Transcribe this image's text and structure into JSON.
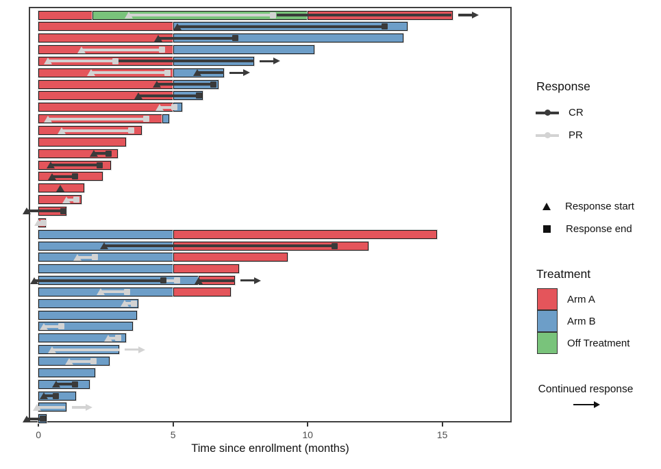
{
  "axis": {
    "xlabel": "Time since enrollment (months)"
  },
  "legend": {
    "response_title": "Response",
    "cr_label": "CR",
    "pr_label": "PR",
    "start_label": "Response start",
    "end_label": "Response end",
    "treatment_title": "Treatment",
    "treatments": [
      "Arm A",
      "Arm B",
      "Off Treatment"
    ],
    "continued_label": "Continued response"
  },
  "chart_data": {
    "type": "bar",
    "subtype": "swimmer-plot",
    "xlabel": "Time since enrollment (months)",
    "x_ticks": [
      0,
      5,
      10,
      15
    ],
    "xlim": [
      -0.31,
      17.63
    ],
    "grid": false,
    "legend_position": "right",
    "colors": {
      "Arm A": "#E4555B",
      "Arm B": "#6D9EC8",
      "Off Treatment": "#79C37B",
      "CR": "#3A3A3A",
      "PR": "#D3D3D3"
    },
    "treatment_codes": {
      "A": "Arm A",
      "B": "Arm B",
      "O": "Off Treatment"
    },
    "rows": [
      {
        "t": [
          [
            "A",
            0,
            2.0
          ],
          [
            "O",
            2.0,
            10.0
          ],
          [
            "A",
            10.0,
            15.4
          ]
        ],
        "r": [
          {
            "type": "PR",
            "start": 3.35,
            "end": 8.7,
            "tri": true,
            "sq": true
          },
          {
            "type": "CR",
            "start": 8.85,
            "end": 15.35,
            "tri": false,
            "sq": false
          }
        ],
        "arrow": "CR"
      },
      {
        "t": [
          [
            "A",
            0,
            5
          ],
          [
            "B",
            5,
            13.7
          ]
        ],
        "r": [
          {
            "type": "CR",
            "start": 5.15,
            "end": 12.85,
            "tri": true,
            "sq": true
          }
        ]
      },
      {
        "t": [
          [
            "A",
            0,
            5
          ],
          [
            "B",
            5,
            13.55
          ]
        ],
        "r": [
          {
            "type": "CR",
            "start": 4.45,
            "end": 7.3,
            "tri": true,
            "sq": true
          }
        ]
      },
      {
        "t": [
          [
            "A",
            0,
            5
          ],
          [
            "B",
            5,
            10.25
          ]
        ],
        "r": [
          {
            "type": "PR",
            "start": 1.6,
            "end": 4.6,
            "tri": true,
            "sq": true
          }
        ]
      },
      {
        "t": [
          [
            "A",
            0,
            5
          ],
          [
            "B",
            5,
            8.0
          ]
        ],
        "r": [
          {
            "type": "PR",
            "start": 0.35,
            "end": 2.85,
            "tri": true,
            "sq": true
          },
          {
            "type": "CR",
            "start": 2.9,
            "end": 8.0,
            "tri": false,
            "sq": false
          }
        ],
        "arrow": "CR"
      },
      {
        "t": [
          [
            "A",
            0,
            5
          ],
          [
            "B",
            5,
            6.9
          ]
        ],
        "r": [
          {
            "type": "PR",
            "start": 1.95,
            "end": 4.8,
            "tri": true,
            "sq": true
          },
          {
            "type": "CR",
            "start": 5.9,
            "end": 6.9,
            "tri": true,
            "sq": false
          }
        ],
        "arrow": "CR"
      },
      {
        "t": [
          [
            "A",
            0,
            5
          ],
          [
            "B",
            5,
            6.7
          ]
        ],
        "r": [
          {
            "type": "CR",
            "start": 4.4,
            "end": 6.5,
            "tri": true,
            "sq": true
          }
        ]
      },
      {
        "t": [
          [
            "A",
            0,
            5
          ],
          [
            "B",
            5,
            6.1
          ]
        ],
        "r": [
          {
            "type": "CR",
            "start": 3.7,
            "end": 5.95,
            "tri": true,
            "sq": true
          }
        ]
      },
      {
        "t": [
          [
            "A",
            0,
            5
          ],
          [
            "B",
            5,
            5.35
          ]
        ],
        "r": [
          {
            "type": "PR",
            "start": 4.5,
            "end": 5.05,
            "tri": true,
            "sq": true
          }
        ]
      },
      {
        "t": [
          [
            "A",
            0,
            4.6
          ],
          [
            "B",
            4.6,
            4.85
          ]
        ],
        "r": [
          {
            "type": "PR",
            "start": 0.36,
            "end": 4.0,
            "tri": true,
            "sq": true
          }
        ]
      },
      {
        "t": [
          [
            "A",
            0,
            3.85
          ]
        ],
        "r": [
          {
            "type": "PR",
            "start": 0.85,
            "end": 3.45,
            "tri": true,
            "sq": true
          }
        ]
      },
      {
        "t": [
          [
            "A",
            0,
            3.25
          ]
        ],
        "r": []
      },
      {
        "t": [
          [
            "A",
            0,
            2.95
          ]
        ],
        "r": [
          {
            "type": "CR",
            "start": 2.05,
            "end": 2.6,
            "tri": true,
            "sq": true
          }
        ]
      },
      {
        "t": [
          [
            "A",
            0,
            2.7
          ]
        ],
        "r": [
          {
            "type": "CR",
            "start": 0.45,
            "end": 2.27,
            "tri": true,
            "sq": true
          }
        ]
      },
      {
        "t": [
          [
            "A",
            0,
            2.4
          ]
        ],
        "r": [
          {
            "type": "CR",
            "start": 0.5,
            "end": 1.35,
            "tri": true,
            "sq": true
          }
        ]
      },
      {
        "t": [
          [
            "A",
            0,
            1.7
          ]
        ],
        "r": [
          {
            "type": "CR",
            "start": 0.8,
            "end": 0.8,
            "tri": true,
            "sq": false
          }
        ]
      },
      {
        "t": [
          [
            "A",
            0,
            1.6
          ]
        ],
        "r": [
          {
            "type": "PR",
            "start": 1.05,
            "end": 1.4,
            "tri": true,
            "sq": true
          }
        ]
      },
      {
        "t": [
          [
            "A",
            0,
            1.05
          ]
        ],
        "r": [
          {
            "type": "CR",
            "start": -0.45,
            "end": 0.92,
            "tri": true,
            "sq": true
          }
        ]
      },
      {
        "t": [
          [
            "A",
            0,
            0.28
          ]
        ],
        "r": [
          {
            "type": "PR",
            "start": 0.0,
            "end": 0.18,
            "tri": true,
            "sq": true
          }
        ]
      },
      {
        "t": [
          [
            "B",
            0,
            5
          ],
          [
            "A",
            5,
            14.8
          ]
        ],
        "r": []
      },
      {
        "t": [
          [
            "B",
            0,
            5
          ],
          [
            "A",
            5,
            12.25
          ]
        ],
        "r": [
          {
            "type": "CR",
            "start": 2.45,
            "end": 11.0,
            "tri": true,
            "sq": true
          }
        ]
      },
      {
        "t": [
          [
            "B",
            0,
            5
          ],
          [
            "A",
            5,
            9.25
          ]
        ],
        "r": [
          {
            "type": "PR",
            "start": 1.45,
            "end": 2.1,
            "tri": true,
            "sq": true
          }
        ]
      },
      {
        "t": [
          [
            "B",
            0,
            5
          ],
          [
            "A",
            5,
            7.45
          ]
        ],
        "r": []
      },
      {
        "t": [
          [
            "B",
            0,
            5.95
          ],
          [
            "A",
            5.95,
            7.3
          ]
        ],
        "r": [
          {
            "type": "CR",
            "start": -0.15,
            "end": 4.65,
            "tri": true,
            "sq": true
          },
          {
            "type": "PR",
            "start": 4.7,
            "end": 5.15,
            "tri": false,
            "sq": true
          },
          {
            "type": "CR",
            "start": 5.95,
            "end": 7.3,
            "tri": true,
            "sq": false
          }
        ],
        "arrow": "CR"
      },
      {
        "t": [
          [
            "B",
            0,
            5
          ],
          [
            "A",
            5,
            7.15
          ]
        ],
        "r": [
          {
            "type": "PR",
            "start": 2.3,
            "end": 3.3,
            "tri": true,
            "sq": true
          }
        ]
      },
      {
        "t": [
          [
            "B",
            0,
            3.7
          ]
        ],
        "r": [
          {
            "type": "PR",
            "start": 3.2,
            "end": 3.55,
            "tri": true,
            "sq": true
          }
        ]
      },
      {
        "t": [
          [
            "B",
            0,
            3.65
          ]
        ],
        "r": []
      },
      {
        "t": [
          [
            "B",
            0,
            3.5
          ]
        ],
        "r": [
          {
            "type": "PR",
            "start": 0.2,
            "end": 0.85,
            "tri": true,
            "sq": true
          }
        ]
      },
      {
        "t": [
          [
            "B",
            0,
            3.25
          ]
        ],
        "r": [
          {
            "type": "PR",
            "start": 2.6,
            "end": 2.95,
            "tri": true,
            "sq": true
          }
        ]
      },
      {
        "t": [
          [
            "B",
            0,
            3.0
          ]
        ],
        "r": [
          {
            "type": "PR",
            "start": 0.5,
            "end": 3.0,
            "tri": true,
            "sq": false
          }
        ],
        "arrow": "PR"
      },
      {
        "t": [
          [
            "B",
            0,
            2.65
          ]
        ],
        "r": [
          {
            "type": "PR",
            "start": 1.15,
            "end": 2.05,
            "tri": true,
            "sq": true
          }
        ]
      },
      {
        "t": [
          [
            "B",
            0,
            2.1
          ]
        ],
        "r": []
      },
      {
        "t": [
          [
            "B",
            0,
            1.9
          ]
        ],
        "r": [
          {
            "type": "CR",
            "start": 0.65,
            "end": 1.35,
            "tri": true,
            "sq": true
          }
        ]
      },
      {
        "t": [
          [
            "B",
            0,
            1.4
          ]
        ],
        "r": [
          {
            "type": "CR",
            "start": 0.2,
            "end": 0.65,
            "tri": true,
            "sq": true
          }
        ]
      },
      {
        "t": [
          [
            "B",
            0,
            1.05
          ]
        ],
        "r": [
          {
            "type": "PR",
            "start": -0.05,
            "end": 1.0,
            "tri": true,
            "sq": false
          }
        ],
        "arrow": "PR"
      },
      {
        "t": [
          [
            "B",
            0,
            0.3
          ]
        ],
        "r": [
          {
            "type": "CR",
            "start": -0.45,
            "end": 0.15,
            "tri": true,
            "sq": true
          }
        ]
      }
    ]
  }
}
